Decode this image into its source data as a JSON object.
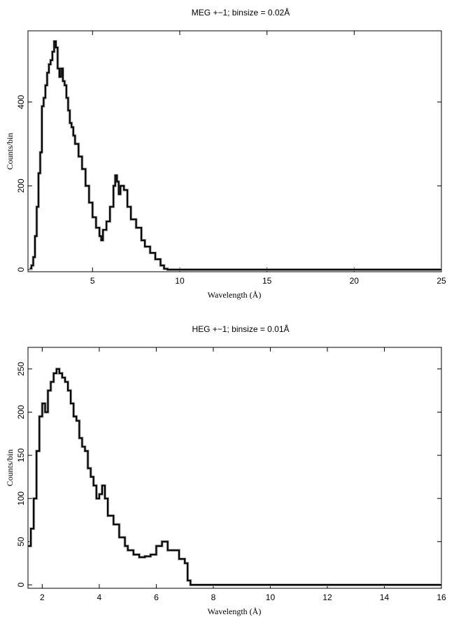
{
  "chart_data": [
    {
      "type": "line",
      "title": "MEG +−1; binsize = 0.02Å",
      "xlabel": "Wavelength (Å)",
      "ylabel": "Counts/bin",
      "xlim": [
        1.3,
        25
      ],
      "ylim": [
        -5,
        570
      ],
      "xticks": [
        5,
        10,
        15,
        20,
        25
      ],
      "yticks": [
        0,
        200,
        400
      ],
      "xtick_labels": [
        "5",
        "10",
        "15",
        "20",
        "25"
      ],
      "ytick_labels": [
        "0",
        "200",
        "400"
      ],
      "grid": false,
      "binsize": 0.02,
      "series": [
        {
          "x": [
            1.4,
            1.5,
            1.6,
            1.7,
            1.8,
            1.9,
            2.0,
            2.1,
            2.2,
            2.3,
            2.4,
            2.5,
            2.6,
            2.7,
            2.8,
            2.9,
            3.0,
            3.1,
            3.2,
            3.3,
            3.4,
            3.5,
            3.6,
            3.7,
            3.8,
            3.9,
            4.0,
            4.2,
            4.4,
            4.6,
            4.8,
            5.0,
            5.2,
            5.4,
            5.5,
            5.6,
            5.8,
            6.0,
            6.2,
            6.3,
            6.4,
            6.5,
            6.6,
            6.8,
            7.0,
            7.2,
            7.5,
            7.8,
            8.0,
            8.3,
            8.6,
            8.9,
            9.1,
            9.3,
            10,
            15,
            20,
            25
          ],
          "y": [
            3,
            10,
            30,
            80,
            150,
            230,
            280,
            390,
            410,
            440,
            470,
            490,
            500,
            520,
            545,
            530,
            480,
            460,
            480,
            450,
            440,
            410,
            380,
            350,
            340,
            320,
            300,
            270,
            240,
            200,
            160,
            125,
            100,
            80,
            70,
            95,
            115,
            150,
            200,
            225,
            210,
            180,
            200,
            190,
            150,
            120,
            100,
            70,
            55,
            40,
            25,
            10,
            2,
            0,
            0,
            0,
            0,
            0
          ]
        }
      ]
    },
    {
      "type": "line",
      "title": "HEG +−1; binsize = 0.01Å",
      "xlabel": "Wavelength (Å)",
      "ylabel": "Counts/bin",
      "xlim": [
        1.5,
        16
      ],
      "ylim": [
        -4,
        275
      ],
      "xticks": [
        2,
        4,
        6,
        8,
        10,
        12,
        14,
        16
      ],
      "yticks": [
        0,
        50,
        100,
        150,
        200,
        250
      ],
      "xtick_labels": [
        "2",
        "4",
        "6",
        "8",
        "10",
        "12",
        "14",
        "16"
      ],
      "ytick_labels": [
        "0",
        "50",
        "100",
        "150",
        "200",
        "250"
      ],
      "grid": false,
      "binsize": 0.01,
      "series": [
        {
          "x": [
            1.5,
            1.6,
            1.7,
            1.8,
            1.9,
            2.0,
            2.1,
            2.2,
            2.3,
            2.4,
            2.5,
            2.6,
            2.7,
            2.8,
            2.9,
            3.0,
            3.1,
            3.2,
            3.3,
            3.4,
            3.5,
            3.6,
            3.7,
            3.8,
            3.9,
            4.0,
            4.1,
            4.2,
            4.3,
            4.5,
            4.7,
            4.9,
            5.0,
            5.2,
            5.4,
            5.6,
            5.8,
            6.0,
            6.2,
            6.4,
            6.6,
            6.8,
            7.0,
            7.1,
            7.2,
            8,
            10,
            12,
            14,
            16
          ],
          "y": [
            45,
            65,
            100,
            155,
            195,
            210,
            200,
            225,
            235,
            245,
            250,
            245,
            240,
            235,
            225,
            210,
            195,
            190,
            170,
            160,
            155,
            135,
            125,
            115,
            100,
            105,
            115,
            100,
            80,
            70,
            55,
            45,
            40,
            35,
            32,
            33,
            35,
            45,
            50,
            40,
            40,
            30,
            25,
            5,
            0,
            0,
            0,
            0,
            0,
            0
          ]
        }
      ]
    }
  ]
}
